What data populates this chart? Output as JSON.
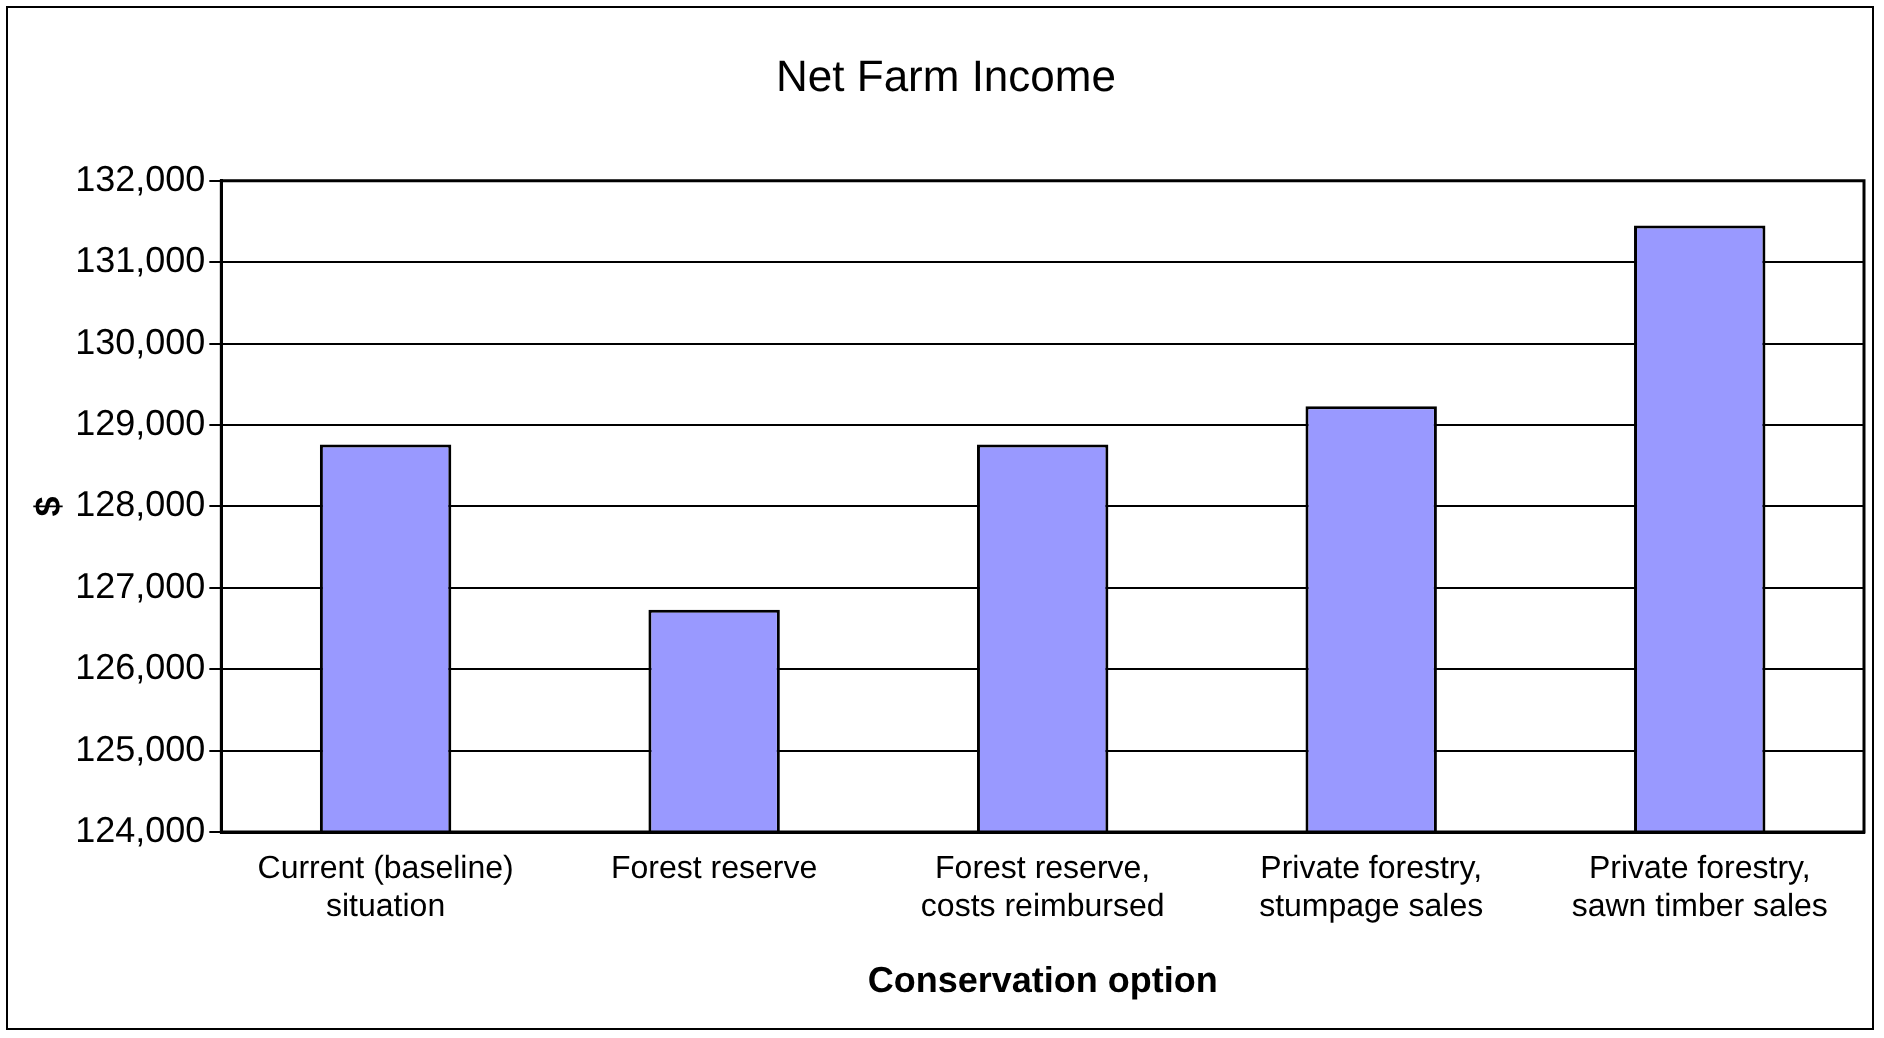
{
  "chart_data": {
    "type": "bar",
    "title": "Net Farm Income",
    "xlabel": "Conservation option",
    "ylabel": "$",
    "categories": [
      "Current (baseline) situation",
      "Forest reserve",
      "Forest reserve, costs reimbursed",
      "Private forestry, stumpage sales",
      "Private forestry, sawn timber sales"
    ],
    "values": [
      128760,
      126730,
      128760,
      129230,
      131450
    ],
    "color": "#9999ff",
    "ylim": [
      124000,
      132000
    ],
    "yticks": [
      {
        "value": 124000,
        "label": "124,000"
      },
      {
        "value": 125000,
        "label": "125,000"
      },
      {
        "value": 126000,
        "label": "126,000"
      },
      {
        "value": 127000,
        "label": "127,000"
      },
      {
        "value": 128000,
        "label": "128,000"
      },
      {
        "value": 129000,
        "label": "129,000"
      },
      {
        "value": 130000,
        "label": "130,000"
      },
      {
        "value": 131000,
        "label": "131,000"
      },
      {
        "value": 132000,
        "label": "132,000"
      }
    ],
    "grid": "y",
    "legend": false
  }
}
